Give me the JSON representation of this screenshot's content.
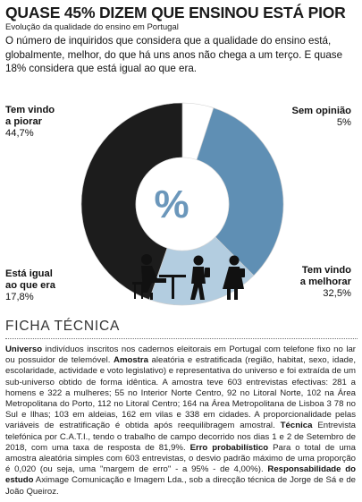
{
  "header": {
    "title": "QUASE 45% DIZEM QUE ENSINOU ESTÁ PIOR",
    "subtitle": "Evolução da qualidade do ensino em Portugal",
    "lead": "O número de inquiridos que considera que a qualidade do ensino está, globalmente, melhor, do que há uns anos não chega a um terço. E quase 18% considera que está igual ao que era."
  },
  "chart_data": {
    "type": "pie",
    "style": "donut",
    "center_symbol": "%",
    "slices": [
      {
        "label": "Sem opinião",
        "value": 5,
        "display": "5%",
        "color": "#ffffff"
      },
      {
        "label": "Tem vindo a melhorar",
        "value": 32.5,
        "display": "32,5%",
        "color": "#5f8fb4"
      },
      {
        "label": "Está igual ao que era",
        "value": 17.8,
        "display": "17,8%",
        "color": "#b3cde0"
      },
      {
        "label": "Tem vindo a piorar",
        "value": 44.7,
        "display": "44,7%",
        "color": "#1c1c1c"
      }
    ]
  },
  "labels": {
    "piorar": {
      "line1": "Tem vindo",
      "line2": "a piorar",
      "pct": "44,7%"
    },
    "sem_opiniao": {
      "line1": "Sem opinião",
      "pct": "5%"
    },
    "igual": {
      "line1": "Está igual",
      "line2": "ao que era",
      "pct": "17,8%"
    },
    "melhorar": {
      "line1": "Tem vindo",
      "line2": "a melhorar",
      "pct": "32,5%"
    }
  },
  "ficha": {
    "title": "FICHA TÉCNICA",
    "universo_label": "Universo",
    "universo_text": " indivíduos inscritos nos cadernos eleitorais em Portugal com telefone fixo no lar ou possuidor de telemóvel. ",
    "amostra_label": "Amostra",
    "amostra_text": " aleatória e estratificada (região, habitat, sexo, idade, escolaridade, actividade e voto legislativo) e representativa do universo e foi extraída de um sub-universo obtido de forma idêntica. A amostra teve 603 entrevistas efectivas: 281 a homens e 322 a mulheres; 55 no Interior Norte Centro, 92 no Litoral Norte, 102 na Área Metropolitana do Porto, 112 no Litoral Centro; 164 na Área Metropolitana de Lisboa 3 78 no Sul e Ilhas; 103 em aldeias, 162 em vilas e 338 em cidades. A proporcionalidade pelas variáveis de estratificação é obtida após reequilibragem amostral. ",
    "tecnica_label": "Técnica",
    "tecnica_text": " Entrevista telefónica por C.A.T.I., tendo o trabalho de campo decorrido nos dias 1 e 2 de Setembro de 2018, com uma taxa de resposta de 81,9%. ",
    "erro_label": "Erro probabilístico",
    "erro_text": " Para o total de uma amostra aleatória simples com 603 entrevistas, o desvio padrão máximo de uma proporção é 0,020 (ou seja, uma \"margem de erro\" - a 95% - de 4,00%). ",
    "resp_label": "Responsabilidade do estudo",
    "resp_text": " Aximage Comunicação e Imagem Lda., sob a direcção técnica de Jorge de Sá e de João Queiroz."
  }
}
